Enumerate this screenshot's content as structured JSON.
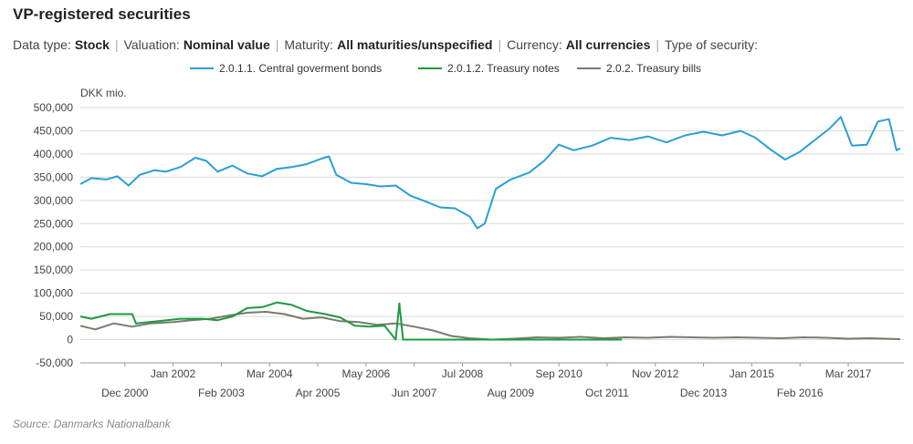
{
  "title": "VP-registered securities",
  "filters": [
    {
      "label": "Data type:",
      "value": "Stock"
    },
    {
      "label": "Valuation:",
      "value": "Nominal value"
    },
    {
      "label": "Maturity:",
      "value": "All maturities/unspecified"
    },
    {
      "label": "Currency:",
      "value": "All currencies"
    },
    {
      "label": "Type of security:",
      "value": ""
    }
  ],
  "filter_separator": "|",
  "source": "Source: Danmarks Nationalbank",
  "chart_data": {
    "type": "line",
    "ylabel": "DKK mio.",
    "ylim": [
      -50000,
      500000
    ],
    "yticks": [
      -50000,
      0,
      50000,
      100000,
      150000,
      200000,
      250000,
      300000,
      350000,
      400000,
      450000,
      500000
    ],
    "ytick_labels": [
      "-50,000",
      "0",
      "50,000",
      "100,000",
      "150,000",
      "200,000",
      "250,000",
      "300,000",
      "350,000",
      "400,000",
      "450,000",
      "500,000"
    ],
    "xlim": [
      "1999-12",
      "2017-12"
    ],
    "xticks_upper": [
      "2002-01",
      "2004-03",
      "2006-05",
      "2008-07",
      "2010-09",
      "2012-11",
      "2015-01",
      "2017-03"
    ],
    "xtick_labels_upper": [
      "Jan 2002",
      "Mar 2004",
      "May 2006",
      "Jul 2008",
      "Sep 2010",
      "Nov 2012",
      "Jan 2015",
      "Mar 2017"
    ],
    "xticks_lower": [
      "2000-12",
      "2003-02",
      "2005-04",
      "2007-06",
      "2009-08",
      "2011-10",
      "2013-12",
      "2016-02"
    ],
    "xtick_labels_lower": [
      "Dec 2000",
      "Feb 2003",
      "Apr 2005",
      "Jun 2007",
      "Aug 2009",
      "Oct 2011",
      "Dec 2013",
      "Feb 2016"
    ],
    "grid": "horizontal",
    "legend_position": "top",
    "series": [
      {
        "name": "2.0.1.1. Central goverment bonds",
        "color": "#2a9fd6",
        "points": [
          [
            "1999-12",
            335000
          ],
          [
            "2000-03",
            348000
          ],
          [
            "2000-07",
            345000
          ],
          [
            "2000-10",
            352000
          ],
          [
            "2001-01",
            332000
          ],
          [
            "2001-04",
            355000
          ],
          [
            "2001-08",
            365000
          ],
          [
            "2001-11",
            362000
          ],
          [
            "2002-03",
            372000
          ],
          [
            "2002-07",
            392000
          ],
          [
            "2002-10",
            385000
          ],
          [
            "2003-01",
            362000
          ],
          [
            "2003-05",
            375000
          ],
          [
            "2003-09",
            358000
          ],
          [
            "2004-01",
            352000
          ],
          [
            "2004-05",
            368000
          ],
          [
            "2004-09",
            372000
          ],
          [
            "2005-01",
            378000
          ],
          [
            "2005-05",
            390000
          ],
          [
            "2005-07",
            395000
          ],
          [
            "2005-09",
            355000
          ],
          [
            "2006-01",
            338000
          ],
          [
            "2006-05",
            335000
          ],
          [
            "2006-09",
            330000
          ],
          [
            "2007-01",
            332000
          ],
          [
            "2007-05",
            310000
          ],
          [
            "2007-09",
            298000
          ],
          [
            "2008-01",
            285000
          ],
          [
            "2008-05",
            283000
          ],
          [
            "2008-09",
            265000
          ],
          [
            "2008-11",
            240000
          ],
          [
            "2009-01",
            250000
          ],
          [
            "2009-04",
            325000
          ],
          [
            "2009-08",
            345000
          ],
          [
            "2010-01",
            360000
          ],
          [
            "2010-05",
            385000
          ],
          [
            "2010-09",
            420000
          ],
          [
            "2011-01",
            408000
          ],
          [
            "2011-06",
            418000
          ],
          [
            "2011-11",
            435000
          ],
          [
            "2012-04",
            430000
          ],
          [
            "2012-09",
            438000
          ],
          [
            "2013-02",
            425000
          ],
          [
            "2013-07",
            440000
          ],
          [
            "2013-12",
            448000
          ],
          [
            "2014-05",
            440000
          ],
          [
            "2014-10",
            450000
          ],
          [
            "2015-02",
            435000
          ],
          [
            "2015-06",
            410000
          ],
          [
            "2015-10",
            388000
          ],
          [
            "2016-02",
            405000
          ],
          [
            "2016-06",
            430000
          ],
          [
            "2016-10",
            455000
          ],
          [
            "2017-01",
            480000
          ],
          [
            "2017-04",
            418000
          ],
          [
            "2017-08",
            420000
          ],
          [
            "2017-11",
            470000
          ],
          [
            "2018-02",
            475000
          ],
          [
            "2018-04",
            408000
          ],
          [
            "2018-05",
            412000
          ]
        ]
      },
      {
        "name": "2.0.1.2. Treasury notes",
        "color": "#1e9a3e",
        "points": [
          [
            "1999-12",
            50000
          ],
          [
            "2000-03",
            45000
          ],
          [
            "2000-08",
            55000
          ],
          [
            "2000-12",
            55000
          ],
          [
            "2001-02",
            55000
          ],
          [
            "2001-03",
            35000
          ],
          [
            "2001-09",
            40000
          ],
          [
            "2002-03",
            45000
          ],
          [
            "2002-09",
            45000
          ],
          [
            "2003-01",
            42000
          ],
          [
            "2003-05",
            50000
          ],
          [
            "2003-09",
            68000
          ],
          [
            "2004-01",
            70000
          ],
          [
            "2004-05",
            80000
          ],
          [
            "2004-09",
            75000
          ],
          [
            "2005-01",
            62000
          ],
          [
            "2005-06",
            55000
          ],
          [
            "2005-10",
            48000
          ],
          [
            "2006-02",
            30000
          ],
          [
            "2006-06",
            28000
          ],
          [
            "2006-10",
            30000
          ],
          [
            "2007-01",
            0
          ],
          [
            "2007-02",
            78000
          ],
          [
            "2007-03",
            0
          ],
          [
            "2008-06",
            0
          ],
          [
            "2009-10",
            0
          ],
          [
            "2012-02",
            0
          ]
        ]
      },
      {
        "name": "2.0.2. Treasury bills",
        "color": "#7a7a6e",
        "points": [
          [
            "1999-12",
            30000
          ],
          [
            "2000-04",
            22000
          ],
          [
            "2000-09",
            35000
          ],
          [
            "2001-02",
            28000
          ],
          [
            "2001-07",
            35000
          ],
          [
            "2002-01",
            38000
          ],
          [
            "2002-06",
            42000
          ],
          [
            "2002-11",
            45000
          ],
          [
            "2003-04",
            52000
          ],
          [
            "2003-09",
            58000
          ],
          [
            "2004-02",
            60000
          ],
          [
            "2004-07",
            55000
          ],
          [
            "2004-12",
            45000
          ],
          [
            "2005-05",
            48000
          ],
          [
            "2005-10",
            40000
          ],
          [
            "2006-03",
            38000
          ],
          [
            "2006-08",
            32000
          ],
          [
            "2007-01",
            35000
          ],
          [
            "2007-06",
            28000
          ],
          [
            "2007-11",
            20000
          ],
          [
            "2008-04",
            8000
          ],
          [
            "2008-09",
            3000
          ],
          [
            "2009-03",
            0
          ],
          [
            "2009-09",
            2000
          ],
          [
            "2010-03",
            5000
          ],
          [
            "2010-09",
            4000
          ],
          [
            "2011-03",
            6000
          ],
          [
            "2011-09",
            3000
          ],
          [
            "2012-03",
            5000
          ],
          [
            "2012-09",
            4000
          ],
          [
            "2013-03",
            6000
          ],
          [
            "2013-09",
            5000
          ],
          [
            "2014-03",
            4000
          ],
          [
            "2014-09",
            5000
          ],
          [
            "2015-03",
            4000
          ],
          [
            "2015-09",
            3000
          ],
          [
            "2016-03",
            5000
          ],
          [
            "2016-09",
            4000
          ],
          [
            "2017-03",
            2000
          ],
          [
            "2017-09",
            3000
          ],
          [
            "2018-05",
            1000
          ]
        ]
      }
    ]
  }
}
